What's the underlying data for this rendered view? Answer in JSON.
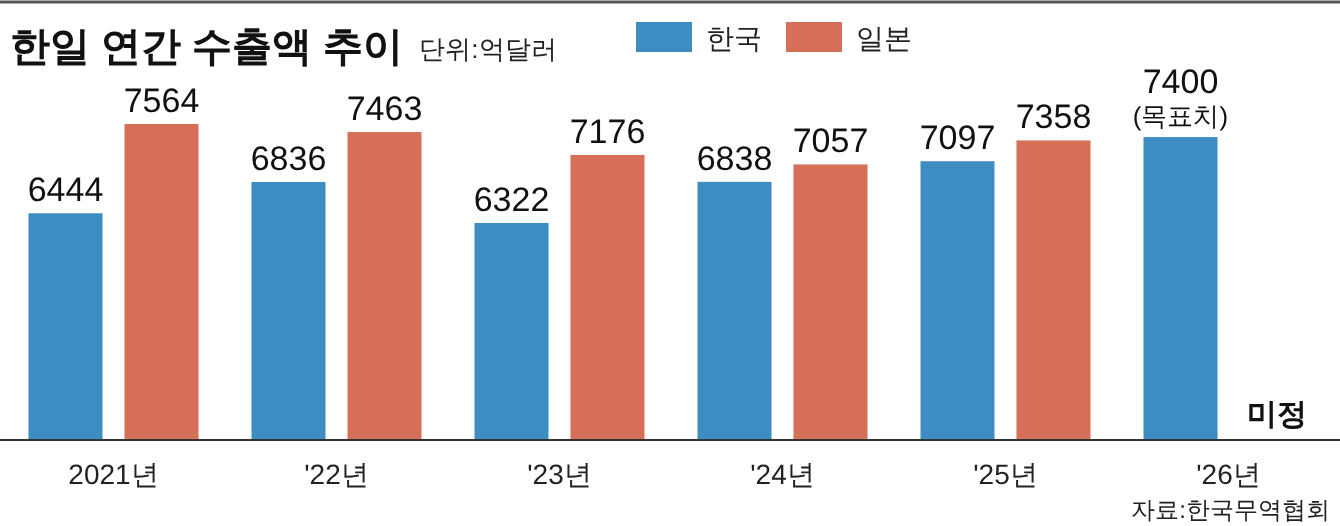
{
  "chart_data": {
    "type": "bar",
    "title": "한일 연간 수출액 추이",
    "subtitle": "단위:억달러",
    "categories": [
      "2021년",
      "'22년",
      "'23년",
      "'24년",
      "'25년",
      "'26년"
    ],
    "series": [
      {
        "name": "한국",
        "color": "#3d8cc2",
        "values": [
          6444,
          6836,
          6322,
          6838,
          7097,
          7400
        ],
        "value_labels": [
          "6444",
          "6836",
          "6322",
          "6838",
          "7097",
          "7400\n(목표치)"
        ]
      },
      {
        "name": "일본",
        "color": "#d66f58",
        "values": [
          7564,
          7463,
          7176,
          7057,
          7358,
          null
        ]
      }
    ],
    "data_labels": true,
    "ylim": [
      3600,
      7564
    ],
    "legend": "top right",
    "annotations": [
      "미정",
      "자료:한국무역협회"
    ]
  }
}
